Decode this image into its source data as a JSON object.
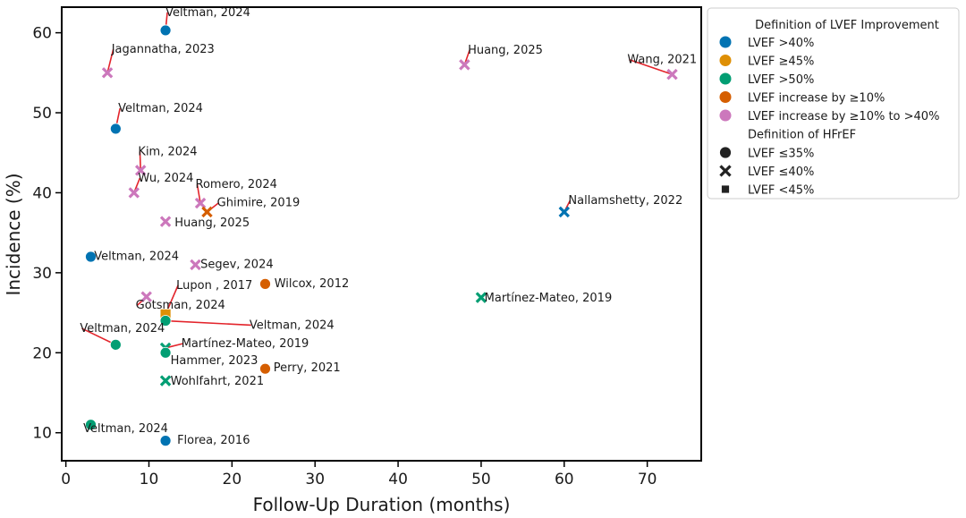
{
  "chart_data": {
    "type": "scatter",
    "title": "",
    "xlabel": "Follow-Up Duration (months)",
    "ylabel": "Incidence (%)",
    "xlim": [
      -0.5,
      76.5
    ],
    "ylim": [
      6.5,
      63.2
    ],
    "xticks": [
      0,
      10,
      20,
      30,
      40,
      50,
      60,
      70
    ],
    "yticks": [
      10,
      20,
      30,
      40,
      50,
      60
    ],
    "grid": false,
    "legend_position": "outside-right",
    "colors": {
      "LVEF >40%": "#0173b2",
      "LVEF ≥45%": "#de8f05",
      "LVEF >50%": "#029e73",
      "LVEF increase by ≥10%": "#d55e00",
      "LVEF increase by ≥10% to >40%": "#cc78bc",
      "annotation_line": "#e3242b"
    },
    "legend": {
      "color_title": "Definition of LVEF Improvement",
      "color_entries": [
        "LVEF >40%",
        "LVEF ≥45%",
        "LVEF >50%",
        "LVEF increase by ≥10%",
        "LVEF increase by ≥10% to >40%"
      ],
      "marker_title": "Definition of HFrEF",
      "marker_entries": [
        {
          "label": "LVEF ≤35%",
          "marker": "circle"
        },
        {
          "label": "LVEF ≤40%",
          "marker": "cross"
        },
        {
          "label": "LVEF <45%",
          "marker": "square"
        }
      ]
    },
    "points": [
      {
        "label": "Veltman, 2024",
        "x": 12,
        "y": 60.3,
        "group": "LVEF >40%",
        "marker": "circle",
        "lx": 12,
        "ly": 62.1,
        "anchor": "start"
      },
      {
        "label": "Jagannatha, 2023",
        "x": 5,
        "y": 55.0,
        "group": "LVEF increase by ≥10% to >40%",
        "marker": "cross",
        "lx": 5.5,
        "ly": 57.5,
        "anchor": "start"
      },
      {
        "label": "Huang, 2025",
        "x": 48,
        "y": 56.0,
        "group": "LVEF increase by ≥10% to >40%",
        "marker": "cross",
        "lx": 48.4,
        "ly": 57.4,
        "anchor": "start"
      },
      {
        "label": "Wang, 2021",
        "x": 73,
        "y": 54.8,
        "group": "LVEF increase by ≥10% to >40%",
        "marker": "cross",
        "lx": 67.6,
        "ly": 56.2,
        "anchor": "start"
      },
      {
        "label": "Veltman, 2024",
        "x": 6,
        "y": 48.0,
        "group": "LVEF >40%",
        "marker": "circle",
        "lx": 6.3,
        "ly": 50.1,
        "anchor": "start"
      },
      {
        "label": "Kim, 2024",
        "x": 9,
        "y": 42.8,
        "group": "LVEF increase by ≥10% to >40%",
        "marker": "cross",
        "lx": 8.7,
        "ly": 44.7,
        "anchor": "start"
      },
      {
        "label": "Wu, 2024",
        "x": 8.2,
        "y": 40.0,
        "group": "LVEF increase by ≥10% to >40%",
        "marker": "cross",
        "lx": 8.7,
        "ly": 41.4,
        "anchor": "start"
      },
      {
        "label": "Romero, 2024",
        "x": 16.2,
        "y": 38.7,
        "group": "LVEF increase by ≥10% to >40%",
        "marker": "cross",
        "lx": 15.6,
        "ly": 40.6,
        "anchor": "start"
      },
      {
        "label": "Ghimire, 2019",
        "x": 17,
        "y": 37.6,
        "group": "LVEF increase by ≥10%",
        "marker": "cross",
        "lx": 18.2,
        "ly": 38.3,
        "anchor": "start"
      },
      {
        "label": "Huang, 2025",
        "x": 12,
        "y": 36.4,
        "group": "LVEF increase by ≥10% to >40%",
        "marker": "cross",
        "lx": 13.1,
        "ly": 35.8,
        "anchor": "start"
      },
      {
        "label": "Nallamshetty, 2022",
        "x": 60,
        "y": 37.6,
        "group": "LVEF >40%",
        "marker": "cross",
        "lx": 60.5,
        "ly": 38.6,
        "anchor": "start"
      },
      {
        "label": "Veltman, 2024",
        "x": 3,
        "y": 32.0,
        "group": "LVEF >40%",
        "marker": "circle",
        "lx": 3.4,
        "ly": 31.6,
        "anchor": "start"
      },
      {
        "label": "Segev, 2024",
        "x": 15.6,
        "y": 31.0,
        "group": "LVEF increase by ≥10% to >40%",
        "marker": "cross",
        "lx": 16.2,
        "ly": 30.6,
        "anchor": "start"
      },
      {
        "label": "Wilcox, 2012",
        "x": 24,
        "y": 28.6,
        "group": "LVEF increase by ≥10%",
        "marker": "circle",
        "lx": 25.1,
        "ly": 28.2,
        "anchor": "start"
      },
      {
        "label": "Martínez-Mateo, 2019",
        "x": 50,
        "y": 26.9,
        "group": "LVEF >50%",
        "marker": "cross",
        "lx": 50.4,
        "ly": 26.4,
        "anchor": "start"
      },
      {
        "label": "Gotsman, 2024",
        "x": 9.7,
        "y": 27.0,
        "group": "LVEF increase by ≥10% to >40%",
        "marker": "cross",
        "lx": 8.4,
        "ly": 25.5,
        "anchor": "start"
      },
      {
        "label": "Lupon , 2017",
        "x": 12,
        "y": 24.8,
        "group": "LVEF ≥45%",
        "marker": "square",
        "lx": 13.3,
        "ly": 28.0,
        "anchor": "start"
      },
      {
        "label": "Veltman, 2024",
        "x": 12,
        "y": 24.0,
        "group": "LVEF >50%",
        "marker": "circle",
        "lx": 22.1,
        "ly": 23.0,
        "anchor": "start"
      },
      {
        "label": "Veltman, 2024",
        "x": 6,
        "y": 21.0,
        "group": "LVEF >50%",
        "marker": "circle",
        "lx": 1.7,
        "ly": 22.6,
        "anchor": "start"
      },
      {
        "label": "Martínez-Mateo, 2019",
        "x": 12,
        "y": 20.6,
        "group": "LVEF >50%",
        "marker": "cross",
        "lx": 13.9,
        "ly": 20.7,
        "anchor": "start"
      },
      {
        "label": "Hammer, 2023",
        "x": 12,
        "y": 20.0,
        "group": "LVEF >50%",
        "marker": "circle",
        "lx": 12.6,
        "ly": 18.6,
        "anchor": "start"
      },
      {
        "label": "Perry, 2021",
        "x": 24,
        "y": 18.0,
        "group": "LVEF increase by ≥10%",
        "marker": "circle",
        "lx": 25.0,
        "ly": 17.7,
        "anchor": "start"
      },
      {
        "label": "Wohlfahrt, 2021",
        "x": 12,
        "y": 16.5,
        "group": "LVEF >50%",
        "marker": "cross",
        "lx": 12.6,
        "ly": 16.0,
        "anchor": "start"
      },
      {
        "label": "Veltman, 2024",
        "x": 3,
        "y": 11.0,
        "group": "LVEF >50%",
        "marker": "circle",
        "lx": 2.1,
        "ly": 10.1,
        "anchor": "start"
      },
      {
        "label": "Florea, 2016",
        "x": 12,
        "y": 9.0,
        "group": "LVEF >40%",
        "marker": "circle",
        "lx": 13.4,
        "ly": 8.6,
        "anchor": "start"
      }
    ]
  }
}
